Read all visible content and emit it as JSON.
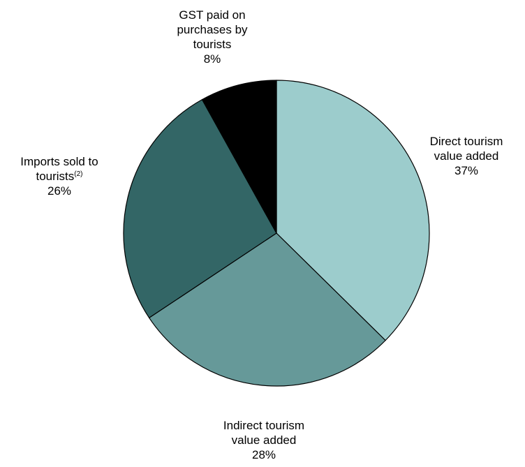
{
  "chart_data": {
    "type": "pie",
    "title": "",
    "slices": [
      {
        "label_lines": [
          "Direct tourism",
          "value added"
        ],
        "superscript": "",
        "value": 37,
        "value_label": "37%",
        "color": "#9ccccc"
      },
      {
        "label_lines": [
          "Indirect tourism",
          "value added"
        ],
        "superscript": "",
        "value": 28,
        "value_label": "28%",
        "color": "#669999"
      },
      {
        "label_lines": [
          "Imports sold to",
          "tourists"
        ],
        "superscript": "(2)",
        "value": 26,
        "value_label": "26%",
        "color": "#336666"
      },
      {
        "label_lines": [
          "GST paid on",
          "purchases by",
          "tourists"
        ],
        "superscript": "",
        "value": 8,
        "value_label": "8%",
        "color": "#000000"
      }
    ],
    "start_angle": "12 o'clock",
    "direction": "clockwise",
    "edge_color": "#000000"
  }
}
